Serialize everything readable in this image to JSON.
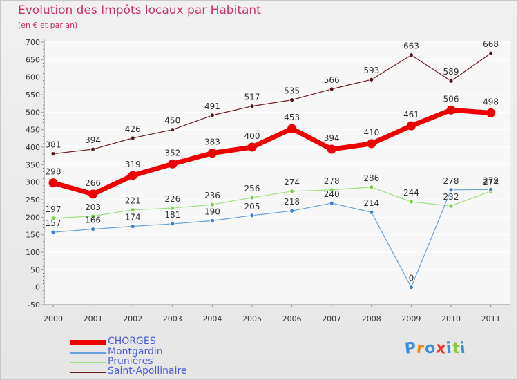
{
  "chart_data": {
    "type": "line",
    "title": "Evolution des Impôts locaux par Habitant",
    "subtitle": "(en € et par an)",
    "categories": [
      "2000",
      "2001",
      "2002",
      "2003",
      "2004",
      "2005",
      "2006",
      "2007",
      "2008",
      "2009",
      "2010",
      "2011"
    ],
    "ylim": [
      -50,
      700
    ],
    "yticks": [
      -50,
      0,
      50,
      100,
      150,
      200,
      250,
      300,
      350,
      400,
      450,
      500,
      550,
      600,
      650,
      700
    ],
    "grid": true,
    "legend_position": "bottom-left",
    "series": [
      {
        "name": "Saint-Apollinaire",
        "color": "#6b1a1e",
        "marker": "#5a1418",
        "width": 1.2,
        "radius": 3,
        "values": [
          381,
          394,
          426,
          450,
          491,
          517,
          535,
          566,
          593,
          663,
          589,
          668
        ]
      },
      {
        "name": "Prunières",
        "color": "#9ee07f",
        "marker": "#7acc4a",
        "width": 1.2,
        "radius": 3,
        "values": [
          197,
          203,
          221,
          226,
          236,
          256,
          274,
          278,
          286,
          244,
          232,
          274
        ]
      },
      {
        "name": "Montgardin",
        "color": "#6aa0d6",
        "marker": "#3a7fc8",
        "width": 1.2,
        "radius": 3,
        "values": [
          157,
          166,
          174,
          181,
          190,
          205,
          218,
          240,
          214,
          0,
          278,
          279
        ]
      },
      {
        "name": "CHORGES",
        "color": "#ee0000",
        "marker": "#ee0000",
        "width": 7,
        "radius": 6.5,
        "values": [
          298,
          266,
          319,
          352,
          383,
          400,
          453,
          394,
          410,
          461,
          506,
          498
        ]
      }
    ]
  },
  "legend": [
    "CHORGES",
    "Montgardin",
    "Prunières",
    "Saint-Apollinaire"
  ],
  "logo": {
    "letters": [
      "P",
      "r",
      "o",
      "x",
      "i",
      "t",
      "i"
    ],
    "colors": [
      "#3b8fd8",
      "#f08a1c",
      "#3b8fd8",
      "#e83a2a",
      "#3b8fd8",
      "#8cc63f",
      "#3b8fd8"
    ]
  }
}
